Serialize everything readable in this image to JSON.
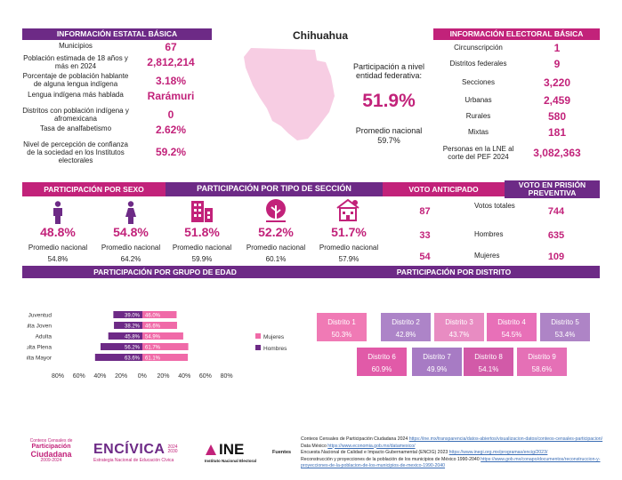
{
  "state": "Chihuahua",
  "basic": {
    "title": "INFORMACIÓN ESTATAL BÁSICA",
    "rows": [
      {
        "label": "Municipios",
        "value": "67"
      },
      {
        "label": "Población estimada de 18 años y más en 2024",
        "value": "2,812,214"
      },
      {
        "label": "Porcentaje de población hablante de alguna lengua indígena",
        "value": "3.18%"
      },
      {
        "label": "Lengua indígena más hablada",
        "value": "Rarámuri"
      },
      {
        "label": "Distritos con población indígena y afromexicana",
        "value": "0"
      },
      {
        "label": "Tasa de analfabetismo",
        "value": "2.62%"
      },
      {
        "label": "Nivel de percepción de confianza de la sociedad en los Institutos electorales",
        "value": "59.2%"
      }
    ]
  },
  "federal": {
    "label": "Participación a nivel entidad federativa:",
    "value": "51.9%",
    "avg_label": "Promedio nacional",
    "avg": "59.7%"
  },
  "electoral": {
    "title": "INFORMACIÓN ELECTORAL BÁSICA",
    "rows": [
      {
        "label": "Circunscripción",
        "value": "1"
      },
      {
        "label": "Distritos federales",
        "value": "9"
      },
      {
        "label": "Secciones",
        "value": "3,220"
      },
      {
        "label": "Urbanas",
        "value": "2,459"
      },
      {
        "label": "Rurales",
        "value": "580"
      },
      {
        "label": "Mixtas",
        "value": "181"
      },
      {
        "label": "Personas en la LNE al corte del PEF 2024",
        "value": "3,082,363"
      }
    ]
  },
  "headers": {
    "sexo": "PARTICIPACIÓN POR SEXO",
    "seccion": "PARTICIPACIÓN POR TIPO DE SECCIÓN",
    "anticipado": "VOTO ANTICIPADO",
    "prision": "VOTO EN PRISIÓN PREVENTIVA",
    "edad": "PARTICIPACIÓN POR GRUPO DE EDAD",
    "distrito": "PARTICIPACIÓN POR DISTRITO"
  },
  "participation": [
    {
      "icon": "man-icon",
      "value": "48.8%",
      "avg_label": "Promedio nacional",
      "avg": "54.8%"
    },
    {
      "icon": "woman-icon",
      "value": "54.8%",
      "avg_label": "Promedio nacional",
      "avg": "64.2%"
    },
    {
      "icon": "urban-icon",
      "value": "51.8%",
      "avg_label": "Promedio nacional",
      "avg": "59.9%"
    },
    {
      "icon": "rural-icon",
      "value": "52.2%",
      "avg_label": "Promedio nacional",
      "avg": "60.1%"
    },
    {
      "icon": "mixed-icon",
      "value": "51.7%",
      "avg_label": "Promedio nacional",
      "avg": "57.9%"
    }
  ],
  "votes": [
    {
      "anticipado": "87",
      "label": "Votos totales",
      "prision": "744"
    },
    {
      "anticipado": "33",
      "label": "Hombres",
      "prision": "635"
    },
    {
      "anticipado": "54",
      "label": "Mujeres",
      "prision": "109"
    }
  ],
  "chart_data": {
    "type": "bar",
    "orientation": "horizontal",
    "categories": [
      "Juventud",
      "Adulta Joven",
      "Adulta",
      "Adulta Plena",
      "Adulta Mayor"
    ],
    "series": [
      {
        "name": "Mujeres",
        "color": "#f06aa8",
        "values": [
          46.0,
          46.6,
          54.9,
          61.7,
          61.1
        ]
      },
      {
        "name": "Hombres",
        "color": "#6d2a86",
        "values": [
          39.0,
          38.2,
          45.8,
          56.2,
          63.6
        ]
      }
    ],
    "data_labels": {
      "Hombres": [
        "39.0%",
        "38.2%",
        "45.8%",
        "56.2%",
        "63.6%"
      ],
      "Mujeres": [
        "46.0%",
        "46.6%",
        "54.9%",
        "61.7%",
        "61.1%"
      ]
    },
    "ticks": [
      "80%",
      "60%",
      "40%",
      "20%",
      "0%",
      "20%",
      "40%",
      "60%",
      "80%"
    ],
    "xlim": [
      -80,
      80
    ],
    "legend": "right"
  },
  "districts": [
    {
      "name": "Distrito 1",
      "value": "50.3%",
      "color": "#f07ab5"
    },
    {
      "name": "Distrito 2",
      "value": "42.8%",
      "color": "#ad84c8"
    },
    {
      "name": "Distrito 3",
      "value": "43.7%",
      "color": "#e88cc2"
    },
    {
      "name": "Distrito 4",
      "value": "54.5%",
      "color": "#e870b8"
    },
    {
      "name": "Distrito 5",
      "value": "53.4%",
      "color": "#ae84c6"
    },
    {
      "name": "Distrito 6",
      "value": "60.9%",
      "color": "#e15aa8"
    },
    {
      "name": "Distrito 7",
      "value": "49.9%",
      "color": "#a77bc4"
    },
    {
      "name": "Distrito 8",
      "value": "54.1%",
      "color": "#d25aa8"
    },
    {
      "name": "Distrito 9",
      "value": "58.6%",
      "color": "#e570b6"
    }
  ],
  "logos": {
    "cc_line1": "Conteos Censales de",
    "cc_line2": "Participación",
    "cc_line3": "Ciudadana",
    "cc_line4": "2009-2024",
    "encivica": "ENCÍVICA",
    "encivica_years": "2024 2030",
    "encivica_sub": "Estrategia Nacional de Educación Cívica",
    "ine": "INE",
    "ine_sub": "Instituto Nacional Electoral"
  },
  "sources": {
    "label": "Fuentes",
    "lines": [
      {
        "text": "Conteos Censales de Participación Ciudadana 2024 ",
        "url": "https://ine.mx/transparencia/datos-abiertos/visualizacion-datos/conteos-censales-participacion/"
      },
      {
        "text": "Data México ",
        "url": "https://www.economia.gob.mx/datamexico/"
      },
      {
        "text": "Encuesta Nacional de Calidad e Impacto Gubernamental (ENCIG) 2023 ",
        "url": "https://www.inegi.org.mx/programas/encig/2023/"
      },
      {
        "text": "Reconstrucción y proyecciones de la población de los municipios de México 1990-2040 ",
        "url": "https://www.gob.mx/conapo/documentos/reconstruccion-y-proyecciones-de-la-poblacion-de-los-municipios-de-mexico-1990-2040"
      }
    ]
  }
}
